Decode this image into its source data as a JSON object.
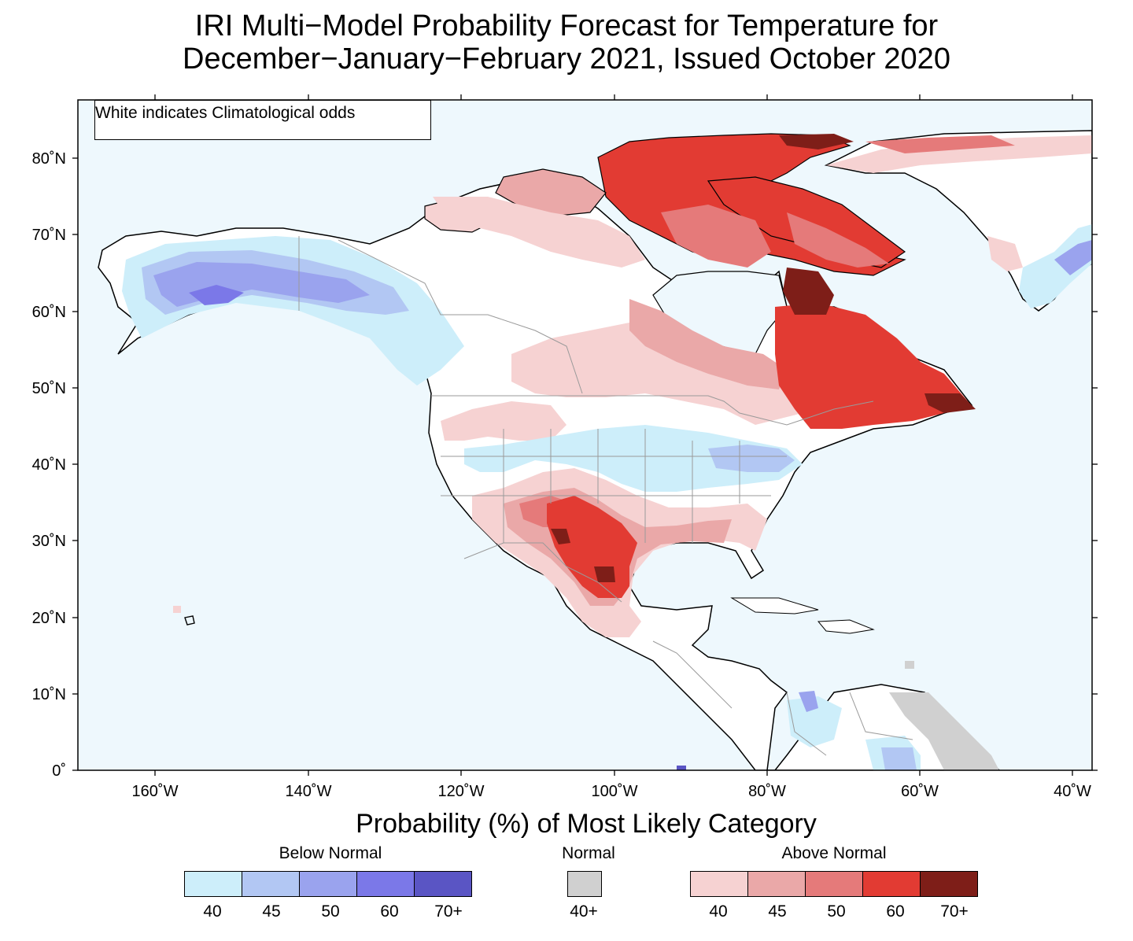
{
  "title": {
    "line1": "IRI Multi−Model Probability Forecast for Temperature for",
    "line2": "December−January−February 2021, Issued October 2020"
  },
  "map": {
    "note": "White indicates Climatological odds",
    "lat_ticks": [
      "80˚N",
      "70˚N",
      "60˚N",
      "50˚N",
      "40˚N",
      "30˚N",
      "20˚N",
      "10˚N",
      "0˚"
    ],
    "lon_ticks": [
      "160˚W",
      "140˚W",
      "120˚W",
      "100˚W",
      "80˚W",
      "60˚W",
      "40˚W"
    ],
    "ocean_color": "#eef8fd"
  },
  "legend": {
    "title": "Probability (%) of Most Likely Category",
    "below_normal": {
      "label": "Below Normal",
      "colors": [
        "#cdeefa",
        "#b2c7f3",
        "#9aa3ee",
        "#7b78e8",
        "#5a55c4"
      ],
      "ticks": [
        "40",
        "45",
        "50",
        "60",
        "70+"
      ]
    },
    "normal": {
      "label": "Normal",
      "colors": [
        "#d0d0d0"
      ],
      "ticks": [
        "40+"
      ]
    },
    "above_normal": {
      "label": "Above Normal",
      "colors": [
        "#f6d2d2",
        "#eaa8a8",
        "#e57a7a",
        "#e23b33",
        "#7e1e18"
      ],
      "ticks": [
        "40",
        "45",
        "50",
        "60",
        "70+"
      ]
    }
  }
}
